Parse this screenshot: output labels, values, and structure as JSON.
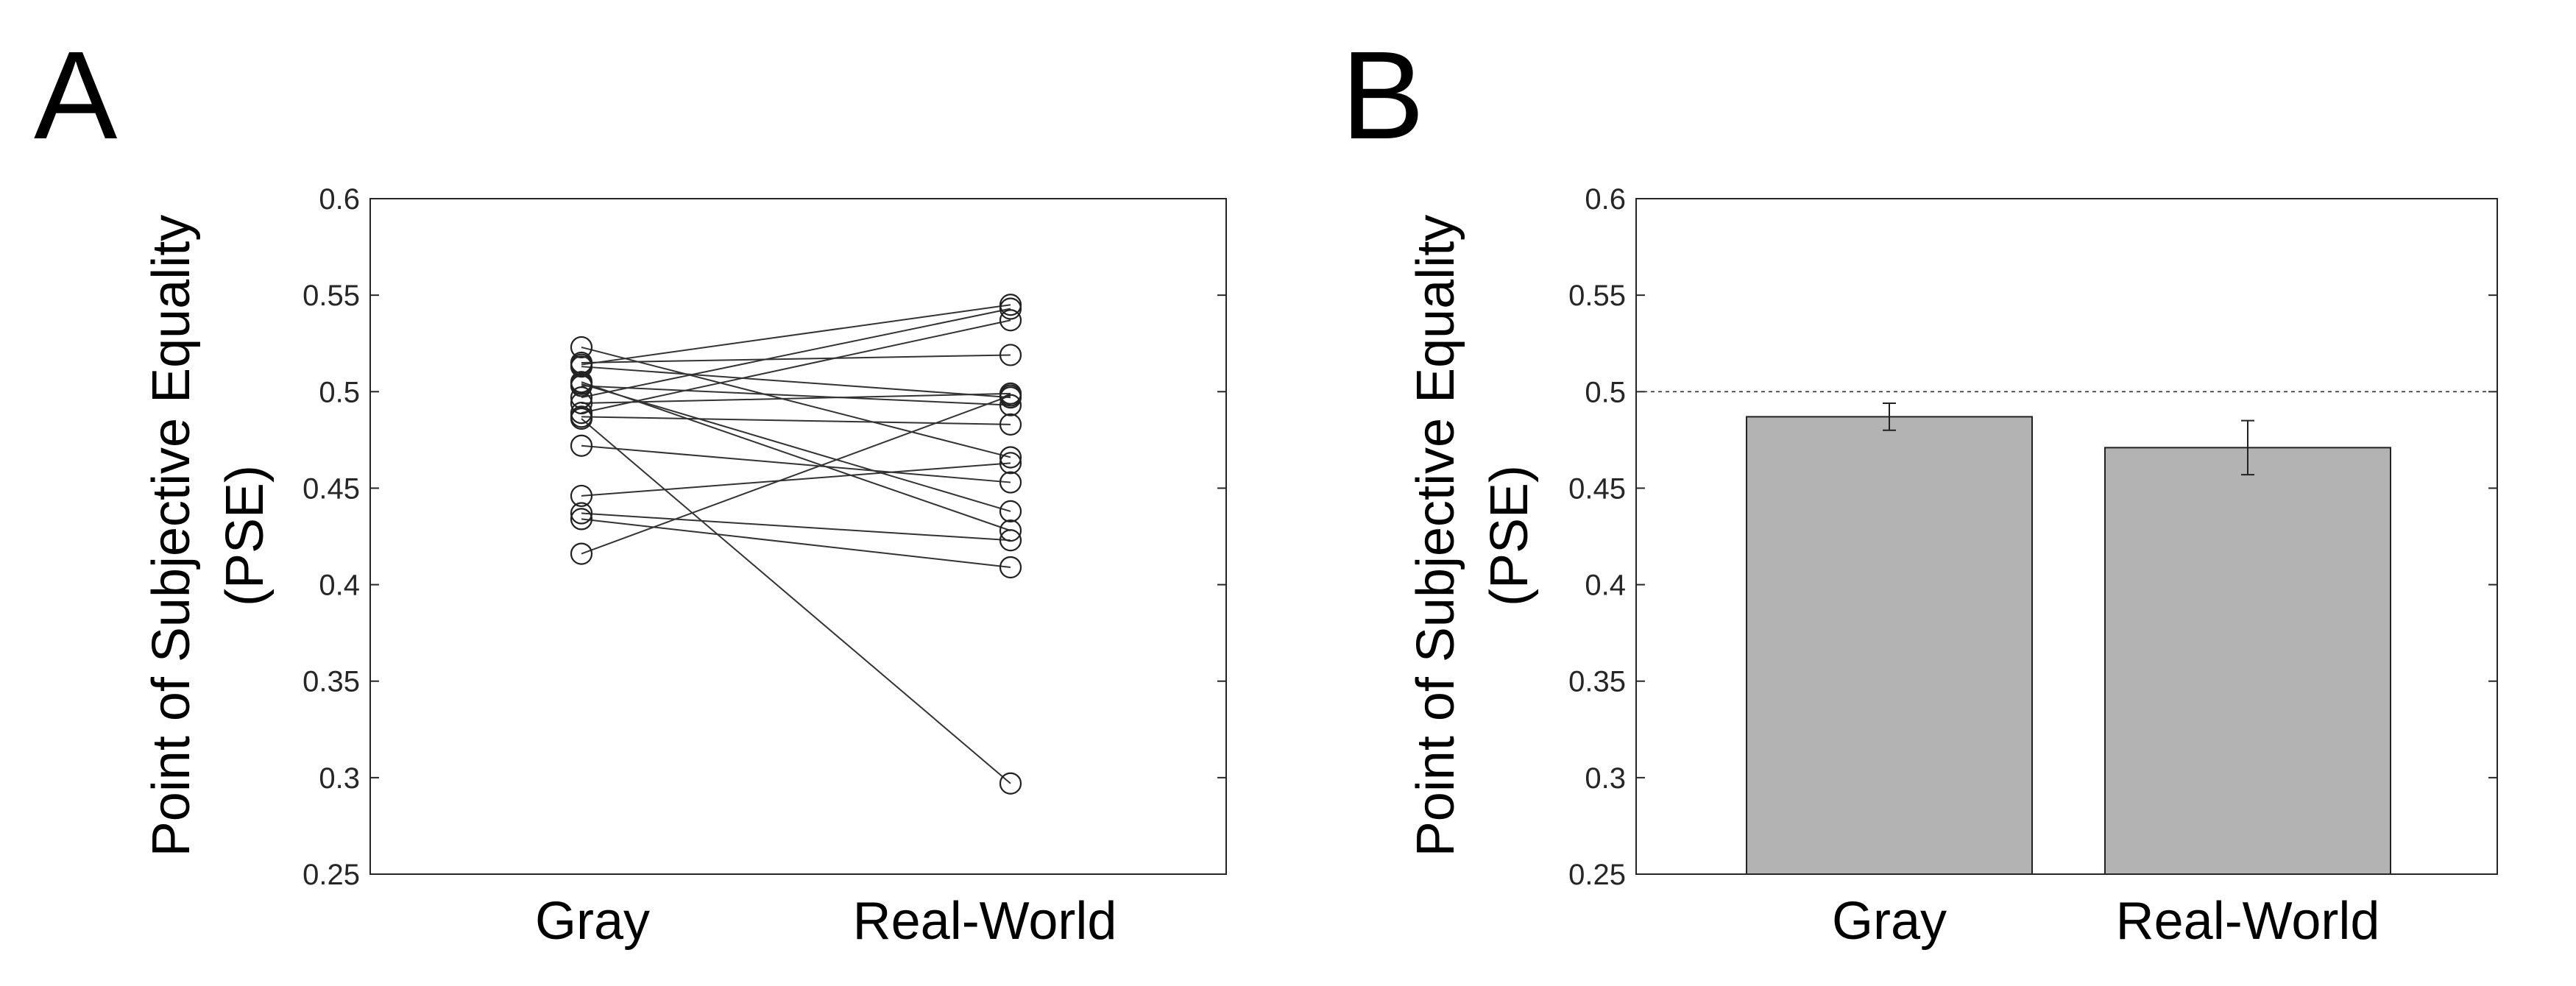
{
  "panels": {
    "a_letter": "A",
    "b_letter": "B"
  },
  "chart_data": [
    {
      "panel": "A",
      "type": "scatter",
      "ylabel_line1": "Point of Subjective Equality",
      "ylabel_line2": "(PSE)",
      "categories": [
        "Gray",
        "Real-World"
      ],
      "ylim": [
        0.25,
        0.6
      ],
      "yticks": [
        "0.25",
        "0.3",
        "0.35",
        "0.4",
        "0.45",
        "0.5",
        "0.55",
        "0.6"
      ],
      "ytick_values": [
        0.25,
        0.3,
        0.35,
        0.4,
        0.45,
        0.5,
        0.55,
        0.6
      ],
      "grid": false,
      "pairs": [
        {
          "gray": 0.523,
          "real_world": 0.466
        },
        {
          "gray": 0.515,
          "real_world": 0.519
        },
        {
          "gray": 0.514,
          "real_world": 0.545
        },
        {
          "gray": 0.513,
          "real_world": 0.497
        },
        {
          "gray": 0.505,
          "real_world": 0.428
        },
        {
          "gray": 0.504,
          "real_world": 0.438
        },
        {
          "gray": 0.503,
          "real_world": 0.493
        },
        {
          "gray": 0.497,
          "real_world": 0.543
        },
        {
          "gray": 0.494,
          "real_world": 0.499
        },
        {
          "gray": 0.489,
          "real_world": 0.537
        },
        {
          "gray": 0.487,
          "real_world": 0.483
        },
        {
          "gray": 0.486,
          "real_world": 0.297
        },
        {
          "gray": 0.472,
          "real_world": 0.453
        },
        {
          "gray": 0.446,
          "real_world": 0.463
        },
        {
          "gray": 0.437,
          "real_world": 0.423
        },
        {
          "gray": 0.434,
          "real_world": 0.409
        },
        {
          "gray": 0.416,
          "real_world": 0.498
        }
      ]
    },
    {
      "panel": "B",
      "type": "bar",
      "ylabel_line1": "Point of Subjective Equality",
      "ylabel_line2": "(PSE)",
      "categories": [
        "Gray",
        "Real-World"
      ],
      "values": [
        0.487,
        0.471
      ],
      "errors": [
        0.007,
        0.014
      ],
      "reference_line": 0.5,
      "ylim": [
        0.25,
        0.6
      ],
      "yticks": [
        "0.25",
        "0.3",
        "0.35",
        "0.4",
        "0.45",
        "0.5",
        "0.55",
        "0.6"
      ],
      "ytick_values": [
        0.25,
        0.3,
        0.35,
        0.4,
        0.45,
        0.5,
        0.55,
        0.6
      ],
      "grid": false,
      "bar_color": "#b3b3b3"
    }
  ]
}
